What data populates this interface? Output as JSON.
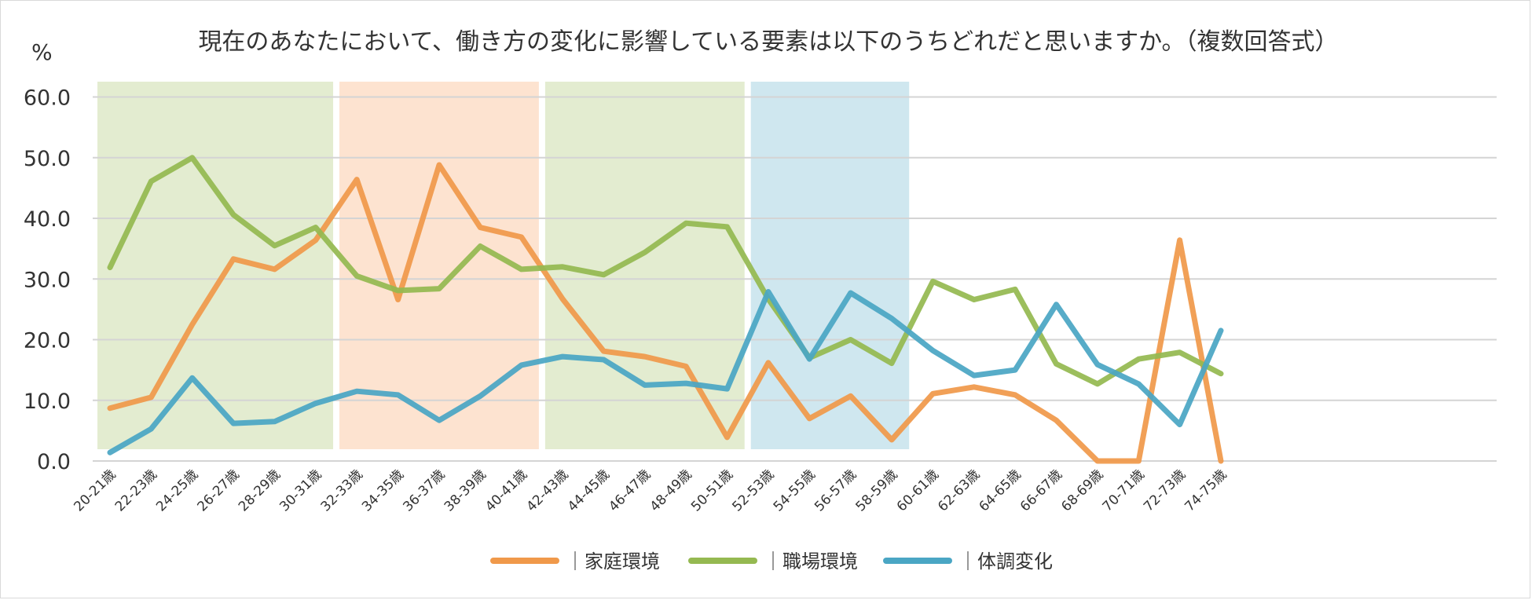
{
  "chart_data": {
    "type": "line",
    "title": "現在のあなたにおいて、働き方の変化に影響している要素は以下のうちどれだと思いますか。（複数回答式）",
    "ylabel": "%",
    "xlabel": "",
    "ylim": [
      0,
      60
    ],
    "yticks": [
      "0.0",
      "10.0",
      "20.0",
      "30.0",
      "40.0",
      "50.0",
      "60.0"
    ],
    "grid": true,
    "legend_position": "bottom-center",
    "categories": [
      "20-21歳",
      "22-23歳",
      "24-25歳",
      "26-27歳",
      "28-29歳",
      "30-31歳",
      "32-33歳",
      "34-35歳",
      "36-37歳",
      "38-39歳",
      "40-41歳",
      "42-43歳",
      "44-45歳",
      "46-47歳",
      "48-49歳",
      "50-51歳",
      "52-53歳",
      "54-55歳",
      "56-57歳",
      "58-59歳",
      "60-61歳",
      "62-63歳",
      "64-65歳",
      "66-67歳",
      "68-69歳",
      "70-71歳",
      "72-73歳",
      "74-75歳"
    ],
    "series": [
      {
        "name": "｜家庭環境",
        "color": "#f0994a",
        "values": [
          8.7,
          10.5,
          22.5,
          33.3,
          31.6,
          36.4,
          46.4,
          26.6,
          48.8,
          38.5,
          36.9,
          26.7,
          18.1,
          17.2,
          15.6,
          3.9,
          16.2,
          7.0,
          10.7,
          3.5,
          11.1,
          12.2,
          10.9,
          6.7,
          0.0,
          0.0,
          36.4,
          0.0
        ]
      },
      {
        "name": "｜職場環境",
        "color": "#95b951",
        "values": [
          31.9,
          46.1,
          50.0,
          40.6,
          35.5,
          38.5,
          30.5,
          28.1,
          28.4,
          35.4,
          31.6,
          32.0,
          30.7,
          34.4,
          39.2,
          38.6,
          26.7,
          17.0,
          20.0,
          16.1,
          29.6,
          26.6,
          28.3,
          16.0,
          12.7,
          16.8,
          17.9,
          14.4
        ]
      },
      {
        "name": "｜体調変化",
        "color": "#4aa6c4",
        "values": [
          1.4,
          5.3,
          13.7,
          6.2,
          6.5,
          9.5,
          11.5,
          10.9,
          6.7,
          10.7,
          15.8,
          17.2,
          16.7,
          12.5,
          12.8,
          11.9,
          27.9,
          16.8,
          27.7,
          23.5,
          18.2,
          14.1,
          15.0,
          25.8,
          15.9,
          12.7,
          6.0,
          21.5
        ]
      }
    ],
    "bands": [
      {
        "from": "20-21歳",
        "to": "30-31歳",
        "color": "#e3ecd0"
      },
      {
        "from": "32-33歳",
        "to": "40-41歳",
        "color": "#fde3d0"
      },
      {
        "from": "42-43歳",
        "to": "50-51歳",
        "color": "#e3ecd0"
      },
      {
        "from": "52-53歳",
        "to": "58-59歳",
        "color": "#cfe7ef"
      }
    ]
  }
}
